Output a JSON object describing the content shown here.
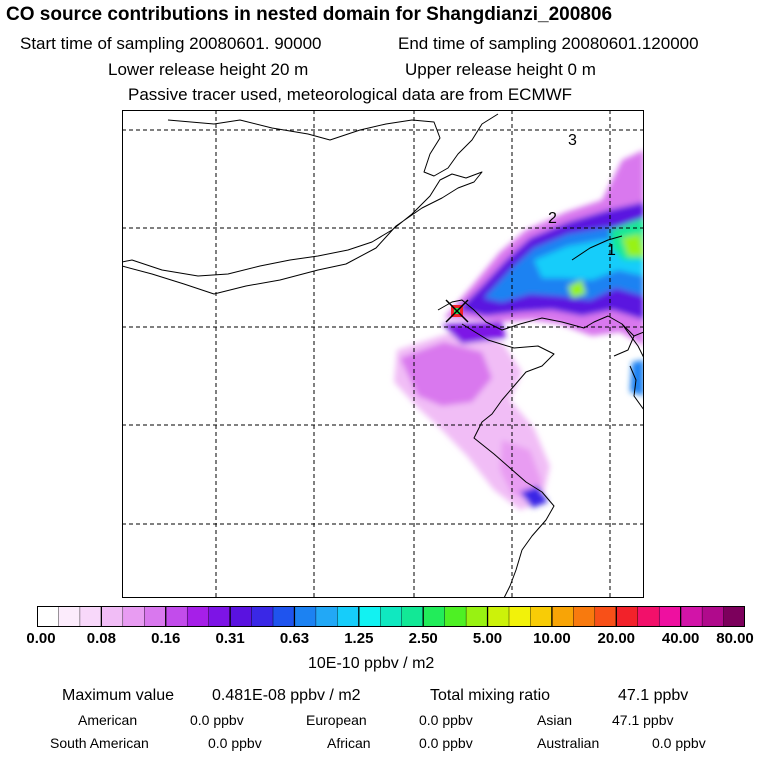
{
  "title": "CO  source contributions in nested domain for Shangdianzi_200806",
  "header": {
    "start_label": "Start time of sampling 20080601. 90000",
    "end_label": "End time of sampling 20080601.120000",
    "lower_label": "Lower release height   20 m",
    "upper_label": "Upper release height    0 m",
    "tracer_label": "Passive tracer used, meteorological data are from ECMWF"
  },
  "map": {
    "labels": [
      {
        "text": "3"
      },
      {
        "text": "2"
      },
      {
        "text": "1"
      }
    ]
  },
  "colorbar": {
    "colors": [
      "#ffffff",
      "#fcecfc",
      "#f8d8fa",
      "#f1bdf6",
      "#e89cf2",
      "#d978ee",
      "#c24ceb",
      "#a61fe8",
      "#7d14e6",
      "#5a12e0",
      "#3a28e6",
      "#1f54ee",
      "#1c82f2",
      "#22a8f6",
      "#16cdfa",
      "#12f2f2",
      "#10e8c0",
      "#12e896",
      "#22ec5a",
      "#4ef024",
      "#98f212",
      "#ccf20a",
      "#f2f20a",
      "#f8cc06",
      "#f8a406",
      "#f87a0e",
      "#f85018",
      "#f2222a",
      "#f2106a",
      "#ee10a0",
      "#d214a8",
      "#b00a8c",
      "#7c005c"
    ],
    "ticks": [
      "0.00",
      "0.08",
      "0.16",
      "0.31",
      "0.63",
      "1.25",
      "2.50",
      "5.00",
      "10.00",
      "20.00",
      "40.00",
      "80.00"
    ],
    "unit": "10E-10 ppbv / m2"
  },
  "stats": {
    "max_label": "Maximum value",
    "max_value": "0.481E-08 ppbv / m2",
    "total_label": "Total mixing ratio",
    "total_value": "47.1 ppbv"
  },
  "regions": [
    {
      "name": "American",
      "value": "0.0 ppbv"
    },
    {
      "name": "European",
      "value": "0.0 ppbv"
    },
    {
      "name": "Asian",
      "value": "47.1 ppbv"
    },
    {
      "name": "South American",
      "value": "0.0 ppbv"
    },
    {
      "name": "African",
      "value": "0.0 ppbv"
    },
    {
      "name": "Australian",
      "value": "0.0 ppbv"
    }
  ]
}
